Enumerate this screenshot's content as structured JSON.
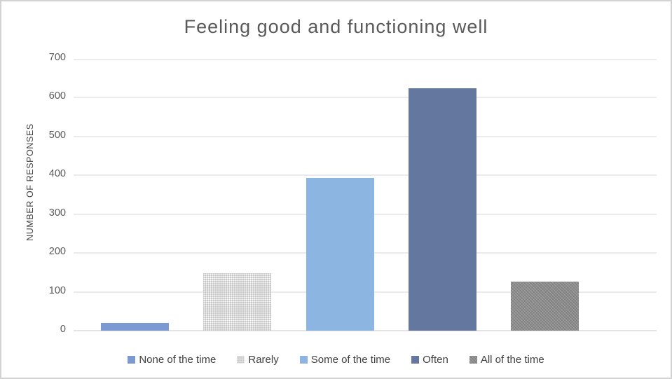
{
  "chart_data": {
    "type": "bar",
    "title": "Feeling good and functioning well",
    "xlabel": "",
    "ylabel": "NUMBER OF RESPONSES",
    "categories": [
      "None of the time",
      "Rarely",
      "Some of the time",
      "Often",
      "All of the time"
    ],
    "values": [
      20,
      148,
      394,
      625,
      126
    ],
    "ylim": [
      0,
      700
    ],
    "y_ticks": [
      0,
      100,
      200,
      300,
      400,
      500,
      600,
      700
    ],
    "grid": true,
    "legend_position": "bottom",
    "series_colors": [
      "#7c9ad1",
      "#c8c8c8",
      "#8db5e2",
      "#64779e",
      "#8b8b8b"
    ],
    "series_patterns": [
      "solid",
      "dots",
      "solid",
      "solid",
      "hatch"
    ]
  },
  "colors": {
    "frame_border": "#d2d2d2",
    "gridline": "#ebebeb",
    "title_text": "#595959",
    "tick_text": "#595959",
    "legend_text": "#3f3f3f"
  }
}
